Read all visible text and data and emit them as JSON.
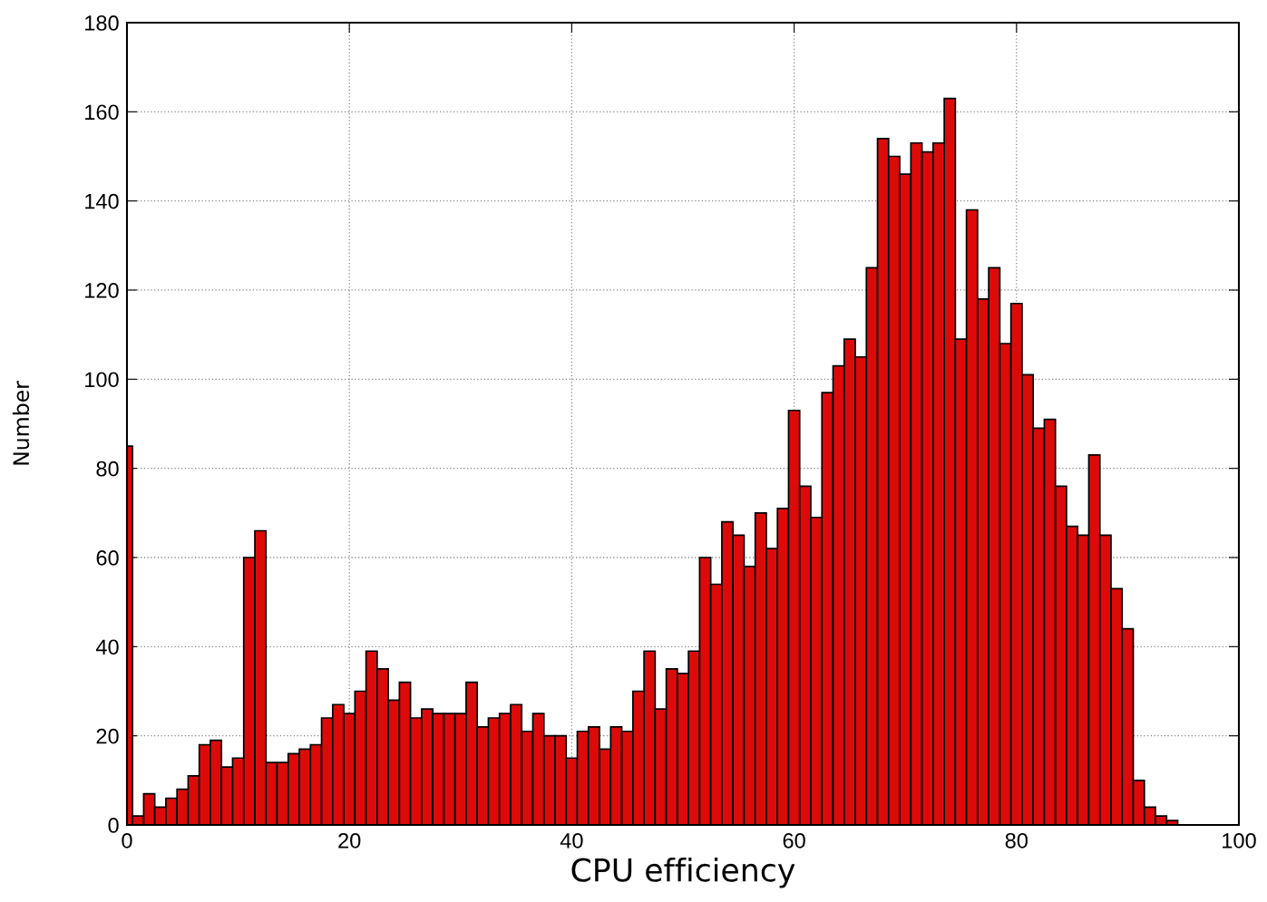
{
  "chart_data": {
    "type": "histogram",
    "xlabel": "CPU efficiency",
    "ylabel": "Number",
    "color": "#dd0a0a",
    "bins": [
      0,
      0.5,
      1.5,
      2.5,
      3.5,
      4.5,
      5.5,
      6.5,
      7.5,
      8.5,
      9.5,
      10.5,
      11.5,
      12.5,
      13.5,
      14.5,
      15.5,
      16.5,
      17.5,
      18.5,
      19.5,
      20.5,
      21.5,
      22.5,
      23.5,
      24.5,
      25.5,
      26.5,
      27.5,
      28.5,
      29.5,
      30.5,
      31.5,
      32.5,
      33.5,
      34.5,
      35.5,
      36.5,
      37.5,
      38.5,
      39.5,
      40.5,
      41.5,
      42.5,
      43.5,
      44.5,
      45.5,
      46.5,
      47.5,
      48.5,
      49.5,
      50.5,
      51.5,
      52.5,
      53.5,
      54.5,
      55.5,
      56.5,
      57.5,
      58.5,
      59.5,
      60.5,
      61.5,
      62.5,
      63.5,
      64.5,
      65.5,
      66.5,
      67.5,
      68.5,
      69.5,
      70.5,
      71.5,
      72.5,
      73.5,
      74.5,
      75.5,
      76.5,
      77.5,
      78.5,
      79.5,
      80.5,
      81.5,
      82.5,
      83.5,
      84.5,
      85.5,
      86.5,
      87.5,
      88.5,
      89.5,
      90.5,
      91.5,
      92.5,
      93.5,
      94.5
    ],
    "values": [
      85,
      2,
      7,
      4,
      6,
      8,
      11,
      18,
      19,
      13,
      15,
      60,
      66,
      14,
      14,
      16,
      17,
      18,
      24,
      27,
      25,
      30,
      39,
      35,
      28,
      32,
      24,
      26,
      25,
      25,
      25,
      32,
      22,
      24,
      25,
      27,
      21,
      25,
      20,
      20,
      15,
      21,
      22,
      17,
      22,
      21,
      30,
      39,
      26,
      35,
      34,
      39,
      60,
      54,
      68,
      65,
      58,
      70,
      62,
      71,
      93,
      76,
      69,
      97,
      103,
      109,
      105,
      125,
      154,
      150,
      146,
      153,
      151,
      153,
      163,
      109,
      138,
      118,
      125,
      108,
      117,
      101,
      89,
      91,
      76,
      67,
      65,
      83,
      65,
      53,
      44,
      10,
      4,
      2,
      1
    ],
    "xlim": [
      0,
      100
    ],
    "xticks": [
      0,
      20,
      40,
      60,
      80,
      100
    ],
    "ylim": [
      0,
      180
    ],
    "yticks": [
      0,
      20,
      40,
      60,
      80,
      100,
      120,
      140,
      160,
      180
    ],
    "grid": true,
    "legend": false
  }
}
